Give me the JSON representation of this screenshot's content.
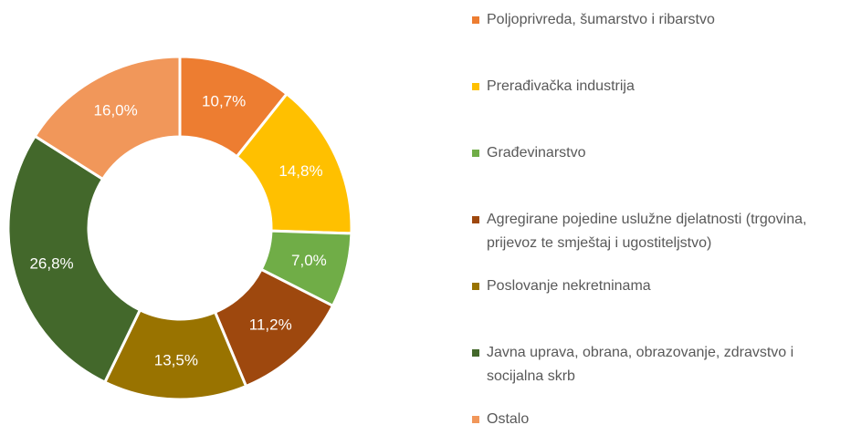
{
  "chart_data": {
    "type": "donut",
    "categories": [
      "Poljoprivreda, šumarstvo i ribarstvo",
      "Prerađivačka industrija",
      "Građevinarstvo",
      "Agregirane pojedine uslužne djelatnosti (trgovina, prijevoz te smještaj i ugostiteljstvo)",
      "Poslovanje nekretninama",
      "Javna uprava, obrana, obrazovanje, zdravstvo i socijalna skrb",
      "Ostalo"
    ],
    "values": [
      10.7,
      14.8,
      7.0,
      11.2,
      13.5,
      26.8,
      16.0
    ],
    "value_labels": [
      "10,7%",
      "14,8%",
      "7,0%",
      "11,2%",
      "13,5%",
      "26,8%",
      "16,0%"
    ],
    "colors": [
      "#ED7D31",
      "#FFC000",
      "#70AD47",
      "#9E480E",
      "#997300",
      "#43682B",
      "#F1975A"
    ],
    "legend": "right"
  }
}
